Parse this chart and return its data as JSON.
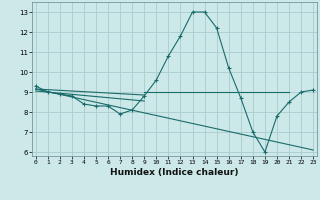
{
  "xlabel": "Humidex (Indice chaleur)",
  "bg_color": "#cce8e8",
  "grid_color": "#aacccc",
  "line_color": "#1a6b6b",
  "x_data": [
    0,
    1,
    2,
    3,
    4,
    5,
    6,
    7,
    8,
    9,
    10,
    11,
    12,
    13,
    14,
    15,
    16,
    17,
    18,
    19,
    20,
    21,
    22,
    23
  ],
  "series1": [
    9.3,
    9.0,
    8.9,
    8.8,
    8.4,
    8.3,
    8.3,
    7.9,
    8.1,
    8.8,
    9.6,
    10.8,
    11.8,
    13.0,
    13.0,
    12.2,
    10.2,
    8.7,
    7.0,
    6.0,
    7.8,
    8.5,
    9.0,
    9.1
  ],
  "line2_x": [
    0,
    23
  ],
  "line2_y": [
    9.15,
    6.1
  ],
  "line3_x": [
    0,
    9
  ],
  "line3_y": [
    9.15,
    8.85
  ],
  "line4_x": [
    0,
    9
  ],
  "line4_y": [
    9.05,
    8.55
  ],
  "line5_x": [
    9,
    21
  ],
  "line5_y": [
    9.0,
    9.0
  ],
  "xlim": [
    -0.3,
    23.3
  ],
  "ylim": [
    5.8,
    13.5
  ],
  "yticks": [
    6,
    7,
    8,
    9,
    10,
    11,
    12,
    13
  ],
  "xticks": [
    0,
    1,
    2,
    3,
    4,
    5,
    6,
    7,
    8,
    9,
    10,
    11,
    12,
    13,
    14,
    15,
    16,
    17,
    18,
    19,
    20,
    21,
    22,
    23
  ]
}
